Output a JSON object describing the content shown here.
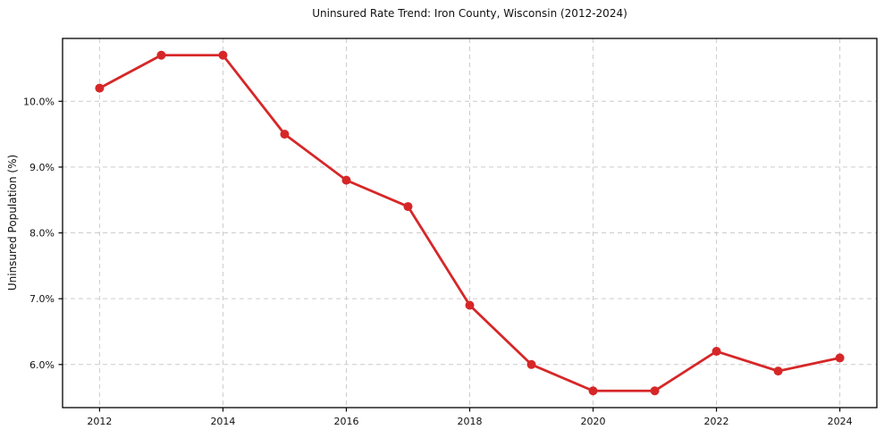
{
  "chart_data": {
    "type": "line",
    "title": "Uninsured Rate Trend: Iron County, Wisconsin (2012-2024)",
    "xlabel": "",
    "ylabel": "Uninsured Population (%)",
    "x": [
      2012,
      2013,
      2014,
      2015,
      2016,
      2017,
      2018,
      2019,
      2020,
      2021,
      2022,
      2023,
      2024
    ],
    "values": [
      10.2,
      10.7,
      10.7,
      9.5,
      8.8,
      8.4,
      6.9,
      6.0,
      5.6,
      5.6,
      6.2,
      5.9,
      6.1
    ],
    "xticks": [
      2012,
      2014,
      2016,
      2018,
      2020,
      2022,
      2024
    ],
    "yticks": [
      6.0,
      7.0,
      8.0,
      9.0,
      10.0
    ],
    "ytick_suffix": "%",
    "xlim": [
      2011.4,
      2024.6
    ],
    "ylim": [
      5.345,
      10.955
    ],
    "grid": true,
    "grid_style": "dashed",
    "legend": "none",
    "colors": {
      "line": "#d62728",
      "marker": "#d62728",
      "grid": "#cccccc",
      "frame": "#000000",
      "text": "#111111",
      "background": "#ffffff"
    },
    "line_width": 2.8,
    "marker_radius": 5
  }
}
